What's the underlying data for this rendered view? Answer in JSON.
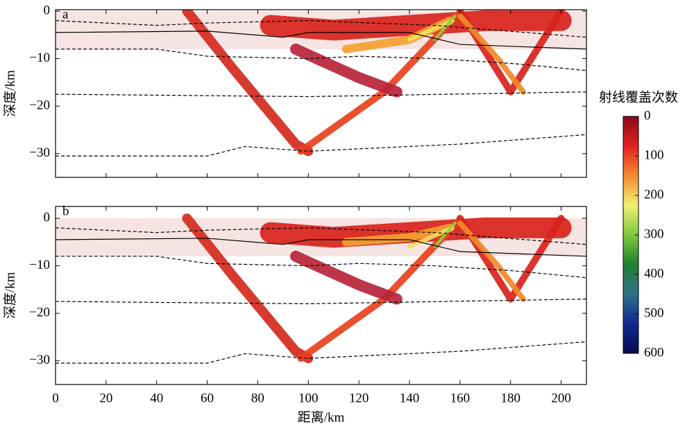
{
  "chart_data": [
    {
      "type": "ray-section",
      "annotation": "a",
      "ylabel": "深度/km",
      "xlim": [
        0,
        210
      ],
      "ylim": [
        -35,
        0.3
      ],
      "xticks": [
        0,
        20,
        40,
        60,
        80,
        100,
        120,
        140,
        160,
        180,
        200
      ],
      "yticks": [
        0,
        {
          "value": -10,
          "label": "−10"
        },
        {
          "value": -20,
          "label": "−20"
        },
        {
          "value": -30,
          "label": "−30"
        }
      ],
      "rays": [
        {
          "color": "#d8231c",
          "width": 30,
          "x": [
            85,
            110,
            140,
            170,
            200
          ],
          "values": [
            -3,
            -4,
            -3,
            -2,
            -2
          ]
        },
        {
          "color": "#d42a1e",
          "width": 14,
          "x": [
            52,
            70,
            95,
            100
          ],
          "values": [
            0,
            -12,
            -28,
            -29.5
          ]
        },
        {
          "color": "#e8401c",
          "width": 10,
          "x": [
            97,
            130,
            155,
            158
          ],
          "values": [
            -29.5,
            -17,
            -3,
            -1
          ]
        },
        {
          "color": "#b8243a",
          "width": 16,
          "x": [
            95,
            120,
            135
          ],
          "values": [
            -8,
            -14,
            -17
          ]
        },
        {
          "color": "#f5a030",
          "width": 12,
          "x": [
            115,
            140,
            156
          ],
          "values": [
            -8,
            -6,
            -2
          ]
        },
        {
          "color": "#d8231c",
          "width": 10,
          "x": [
            160,
            180,
            200
          ],
          "values": [
            0,
            -17,
            0
          ]
        },
        {
          "color": "#f08a2a",
          "width": 8,
          "x": [
            160,
            175,
            185
          ],
          "values": [
            -1,
            -10,
            -17
          ]
        },
        {
          "color": "#f0e060",
          "width": 6,
          "x": [
            140,
            157
          ],
          "values": [
            -6,
            -2
          ]
        },
        {
          "color": "#8fd040",
          "width": 4,
          "x": [
            150,
            158
          ],
          "values": [
            -6,
            -1
          ]
        }
      ],
      "series": [
        {
          "color": "#000000",
          "dash": false,
          "x": [
            0,
            60,
            90,
            100,
            140,
            160,
            210
          ],
          "values": [
            -4.5,
            -4.2,
            -5.5,
            -4.5,
            -4.5,
            -7,
            -8
          ]
        },
        {
          "color": "#000000",
          "dash": true,
          "x": [
            0,
            40,
            60,
            100,
            150,
            210
          ],
          "values": [
            -2,
            -3,
            -2.5,
            -2,
            -3,
            -5.5
          ]
        },
        {
          "color": "#000000",
          "dash": true,
          "x": [
            0,
            40,
            60,
            100,
            120,
            150,
            180,
            210
          ],
          "values": [
            -8,
            -8,
            -9.5,
            -10,
            -9.5,
            -10,
            -11,
            -12.5
          ]
        },
        {
          "color": "#000000",
          "dash": true,
          "x": [
            0,
            100,
            210
          ],
          "values": [
            -17.5,
            -18,
            -17
          ]
        },
        {
          "color": "#000000",
          "dash": true,
          "x": [
            0,
            60,
            75,
            100,
            120,
            160,
            210
          ],
          "values": [
            -30.5,
            -30.5,
            -28.5,
            -29.5,
            -29,
            -28,
            -26
          ]
        }
      ]
    },
    {
      "type": "ray-section",
      "annotation": "b",
      "ylabel": "深度/km",
      "xlabel": "距离/km",
      "xlim": [
        0,
        210
      ],
      "ylim": [
        -35,
        2.5
      ],
      "xticks": [
        0,
        20,
        40,
        60,
        80,
        100,
        120,
        140,
        160,
        180,
        200
      ],
      "yticks": [
        0,
        {
          "value": -10,
          "label": "−10"
        },
        {
          "value": -20,
          "label": "−20"
        },
        {
          "value": -30,
          "label": "−30"
        }
      ],
      "rays": [
        {
          "color": "#d8231c",
          "width": 30,
          "x": [
            85,
            110,
            140,
            170,
            200
          ],
          "values": [
            -3,
            -4,
            -3,
            -2,
            -2
          ]
        },
        {
          "color": "#d42a1e",
          "width": 14,
          "x": [
            52,
            70,
            95,
            100
          ],
          "values": [
            0,
            -12,
            -28,
            -29.5
          ]
        },
        {
          "color": "#e8401c",
          "width": 10,
          "x": [
            97,
            130,
            155,
            158
          ],
          "values": [
            -29.5,
            -17,
            -3,
            -1
          ]
        },
        {
          "color": "#b8243a",
          "width": 16,
          "x": [
            95,
            120,
            135
          ],
          "values": [
            -8,
            -14,
            -17
          ]
        },
        {
          "color": "#f5a030",
          "width": 12,
          "x": [
            115,
            140,
            156
          ],
          "values": [
            -5,
            -4,
            -2
          ]
        },
        {
          "color": "#d8231c",
          "width": 10,
          "x": [
            160,
            180,
            200
          ],
          "values": [
            0,
            -17,
            0
          ]
        },
        {
          "color": "#f08a2a",
          "width": 8,
          "x": [
            160,
            175,
            185
          ],
          "values": [
            -1,
            -10,
            -17
          ]
        },
        {
          "color": "#f0e060",
          "width": 6,
          "x": [
            140,
            157
          ],
          "values": [
            -6,
            -2
          ]
        },
        {
          "color": "#8fd040",
          "width": 4,
          "x": [
            150,
            158
          ],
          "values": [
            -6,
            -1
          ]
        }
      ],
      "series": [
        {
          "color": "#000000",
          "dash": false,
          "x": [
            0,
            60,
            90,
            100,
            140,
            160,
            210
          ],
          "values": [
            -4.5,
            -4.2,
            -5.5,
            -4.5,
            -4.5,
            -7,
            -8
          ]
        },
        {
          "color": "#000000",
          "dash": true,
          "x": [
            0,
            40,
            60,
            100,
            150,
            210
          ],
          "values": [
            -2,
            -3,
            -2.5,
            -2,
            -3,
            -5.5
          ]
        },
        {
          "color": "#000000",
          "dash": true,
          "x": [
            0,
            40,
            60,
            100,
            120,
            150,
            180,
            210
          ],
          "values": [
            -8,
            -8,
            -9.5,
            -10,
            -9.5,
            -10,
            -11,
            -12.5
          ]
        },
        {
          "color": "#000000",
          "dash": true,
          "x": [
            0,
            100,
            210
          ],
          "values": [
            -17.5,
            -18,
            -17
          ]
        },
        {
          "color": "#000000",
          "dash": true,
          "x": [
            0,
            60,
            75,
            100,
            120,
            160,
            210
          ],
          "values": [
            -30.5,
            -30.5,
            -28.5,
            -29.5,
            -29,
            -28,
            -26
          ]
        }
      ]
    },
    {
      "type": "colorbar",
      "title": "射线覆盖次数",
      "ylim": [
        0,
        600
      ],
      "yticks": [
        0,
        100,
        200,
        300,
        400,
        500,
        600
      ],
      "colors": [
        "#8a0a1a",
        "#e02020",
        "#f58a30",
        "#f0f070",
        "#80c840",
        "#208030",
        "#30708a",
        "#102890",
        "#0a0a50"
      ]
    }
  ]
}
